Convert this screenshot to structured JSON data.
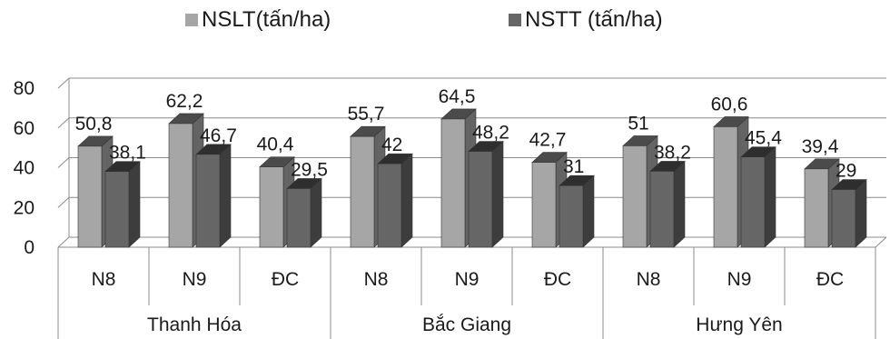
{
  "chart_data": {
    "type": "bar",
    "three_d": true,
    "title": "",
    "xlabel": "",
    "ylabel": "",
    "ylim": [
      0,
      80
    ],
    "yticks": [
      0,
      20,
      40,
      60,
      80
    ],
    "grid": true,
    "legend_position": "top",
    "categories": [
      "N8",
      "N9",
      "ĐC",
      "N8",
      "N9",
      "ĐC",
      "N8",
      "N9",
      "ĐC"
    ],
    "groups": [
      {
        "label": "Thanh Hóa",
        "categories": [
          "N8",
          "N9",
          "ĐC"
        ]
      },
      {
        "label": "Bắc Giang",
        "categories": [
          "N8",
          "N9",
          "ĐC"
        ]
      },
      {
        "label": "Hưng Yên",
        "categories": [
          "N8",
          "N9",
          "ĐC"
        ]
      }
    ],
    "series": [
      {
        "name": "NSLT(tấn/ha)",
        "color": "#a6a6a6",
        "values": [
          50.8,
          62.2,
          40.4,
          55.7,
          64.5,
          42.7,
          51,
          60.6,
          39.4
        ],
        "labels": [
          "50,8",
          "62,2",
          "40,4",
          "55,7",
          "64,5",
          "42,7",
          "51",
          "60,6",
          "39,4"
        ]
      },
      {
        "name": "NSTT (tấn/ha)",
        "color": "#666666",
        "values": [
          38.1,
          46.7,
          29.5,
          42,
          48.2,
          31,
          38.2,
          45.4,
          29
        ],
        "labels": [
          "38,1",
          "46,7",
          "29,5",
          "42",
          "48,2",
          "31",
          "38,2",
          "45,4",
          "29"
        ]
      }
    ]
  }
}
